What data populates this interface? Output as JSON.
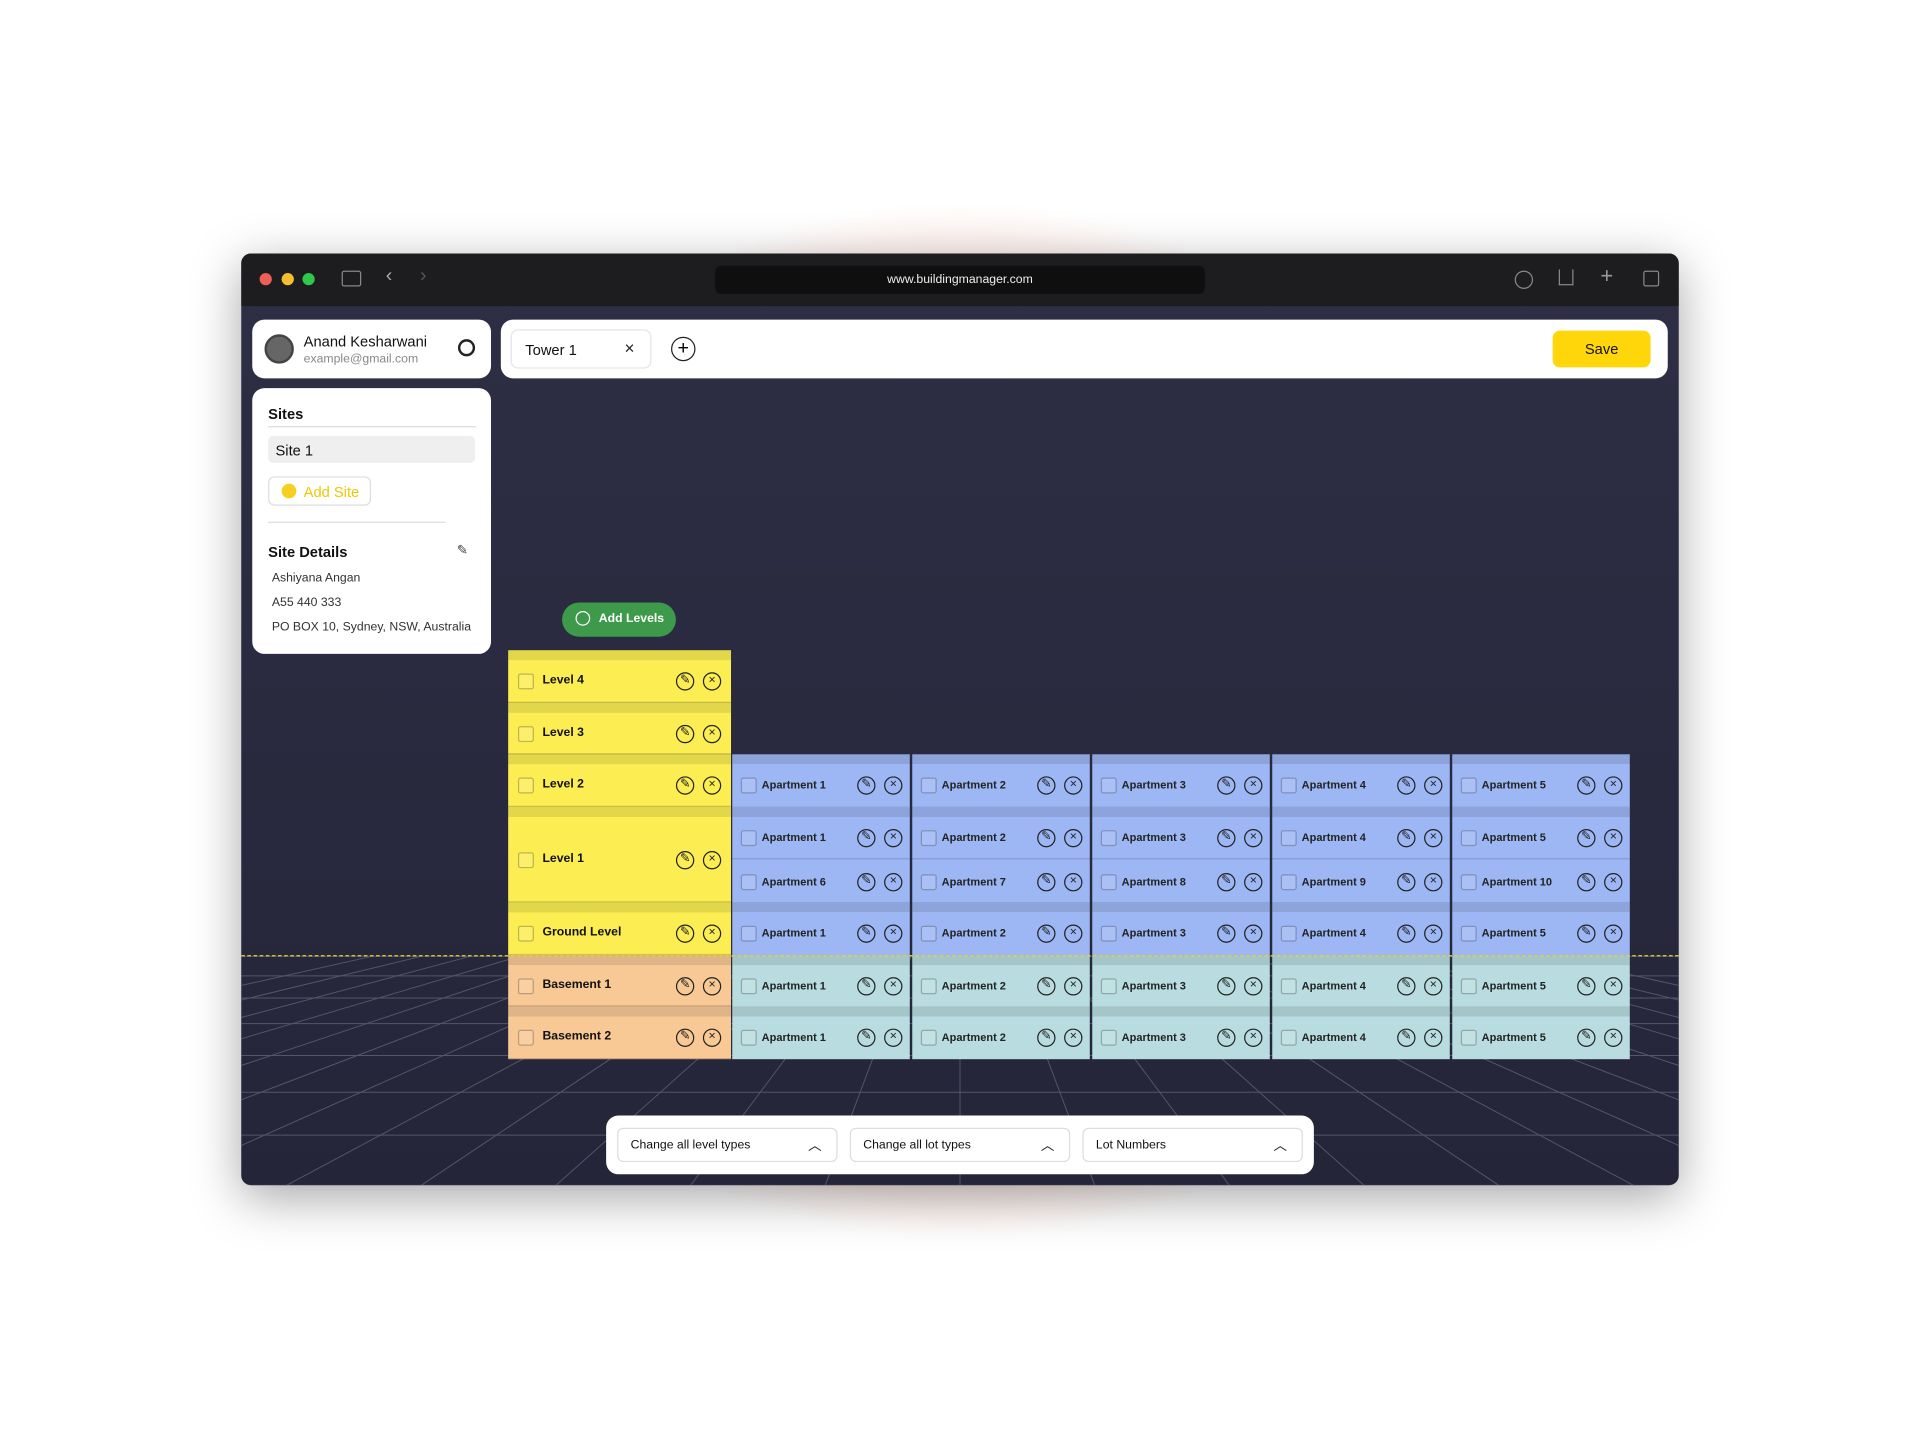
{
  "browser": {
    "url": "www.buildingmanager.com"
  },
  "user": {
    "name": "Anand Kesharwani",
    "email": "example@gmail.com"
  },
  "sites": {
    "title": "Sites",
    "items": [
      "Site 1"
    ],
    "add_label": "Add Site"
  },
  "site_details": {
    "title": "Site Details",
    "lines": [
      "Ashiyana Angan",
      "A55 440 333",
      "PO BOX 10, Sydney, NSW, Australia"
    ]
  },
  "tabs": [
    "Tower 1"
  ],
  "save_label": "Save",
  "add_levels_label": "Add Levels",
  "levels": [
    {
      "name": "Level 4",
      "color": "#fcee52",
      "lot_color": "#9db6f4",
      "lots": []
    },
    {
      "name": "Level 3",
      "color": "#fcee52",
      "lot_color": "#9db6f4",
      "lots": []
    },
    {
      "name": "Level 2",
      "color": "#fcee52",
      "lot_color": "#9db6f4",
      "lots": [
        "Apartment 1",
        "Apartment 2",
        "Apartment 3",
        "Apartment 4",
        "Apartment 5"
      ]
    },
    {
      "name": "Level 1",
      "color": "#fcee52",
      "lot_color": "#9db6f4",
      "lots": [
        "Apartment 1",
        "Apartment 2",
        "Apartment 3",
        "Apartment 4",
        "Apartment 5",
        "Apartment 6",
        "Apartment 7",
        "Apartment 8",
        "Apartment 9",
        "Apartment 10"
      ]
    },
    {
      "name": "Ground Level",
      "color": "#fcee52",
      "lot_color": "#9db6f4",
      "lots": [
        "Apartment 1",
        "Apartment 2",
        "Apartment 3",
        "Apartment 4",
        "Apartment 5"
      ]
    },
    {
      "name": "Basement 1",
      "color": "#f8c895",
      "lot_color": "#b8dcdf",
      "lots": [
        "Apartment 1",
        "Apartment 2",
        "Apartment 3",
        "Apartment 4",
        "Apartment 5"
      ]
    },
    {
      "name": "Basement 2",
      "color": "#f8c895",
      "lot_color": "#b8dcdf",
      "lots": [
        "Apartment 1",
        "Apartment 2",
        "Apartment 3",
        "Apartment 4",
        "Apartment 5"
      ]
    }
  ],
  "toolbar": [
    "Change all level types",
    "Change all lot types",
    "Lot Numbers"
  ]
}
